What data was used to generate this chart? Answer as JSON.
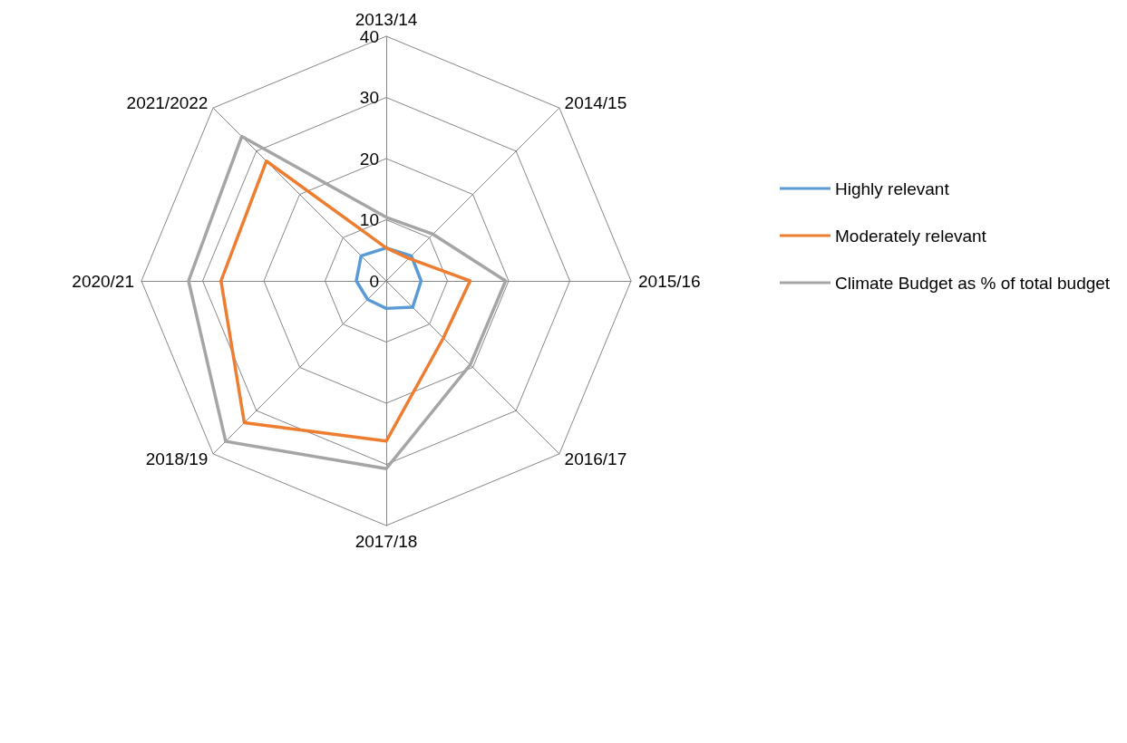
{
  "chart_data": {
    "type": "radar",
    "categories": [
      "2013/14",
      "2014/15",
      "2015/16",
      "2016/17",
      "2017/18",
      "2018/19",
      "2020/21",
      "2021/2022"
    ],
    "series": [
      {
        "name": "Highly relevant",
        "color": "#5b9bd5",
        "values": [
          5.4,
          5.8,
          5.7,
          6.1,
          4.5,
          4.3,
          4.9,
          5.8
        ]
      },
      {
        "name": "Moderately relevant",
        "color": "#ed7d31",
        "values": [
          5.4,
          5.2,
          13.7,
          13.2,
          26.2,
          32.8,
          27,
          27.7
        ]
      },
      {
        "name": "Climate Budget as % of total budget",
        "color": "#a5a5a5",
        "values": [
          10.4,
          10.8,
          19.5,
          19.4,
          30.7,
          37.1,
          32.3,
          33.4
        ]
      }
    ],
    "ylim": [
      0,
      40
    ],
    "yticks": [
      0,
      10,
      20,
      30,
      40
    ],
    "legend": "right",
    "marker": "none"
  }
}
